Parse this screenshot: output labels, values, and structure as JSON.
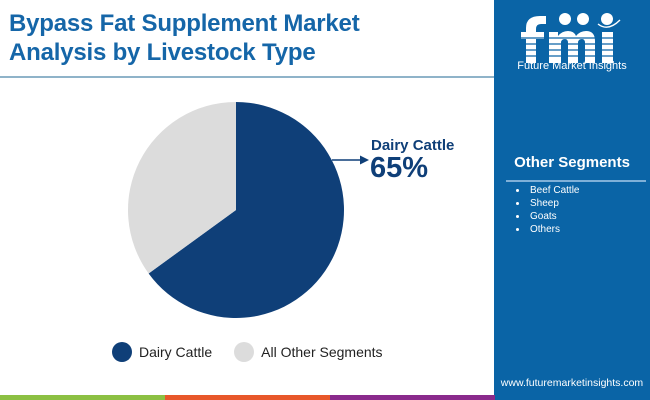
{
  "header": {
    "title_line1": "Bypass Fat Supplement Market",
    "title_line2": "Analysis by Livestock Type"
  },
  "brand": {
    "logo_letters": "fmi",
    "logo_text": "Future Market Insights",
    "url": "www.futuremarketinsights.com"
  },
  "sidebar": {
    "title": "Other Segments",
    "items": [
      {
        "label": "Beef Cattle"
      },
      {
        "label": "Sheep"
      },
      {
        "label": "Goats"
      },
      {
        "label": "Others"
      }
    ]
  },
  "callout": {
    "label": "Dairy Cattle",
    "value": "65%"
  },
  "legend": [
    {
      "label": "Dairy Cattle",
      "color": "#0f3f78"
    },
    {
      "label": "All Other Segments",
      "color": "#dcdcdc"
    }
  ],
  "colors": {
    "title": "#1566a8",
    "panel": "#0a64a6",
    "dairy": "#0f3f78",
    "other": "#dcdcdc",
    "stripe": [
      "#8cc043",
      "#e8572a",
      "#8a2a8c",
      "#0a64a6"
    ]
  },
  "chart_data": {
    "type": "pie",
    "title": "Bypass Fat Supplement Market Analysis by Livestock Type",
    "categories": [
      "Dairy Cattle",
      "All Other Segments"
    ],
    "values": [
      65,
      35
    ],
    "colors": [
      "#0f3f78",
      "#dcdcdc"
    ],
    "annotations": [
      {
        "label": "Dairy Cattle",
        "value": "65%"
      }
    ],
    "legend_position": "bottom"
  }
}
